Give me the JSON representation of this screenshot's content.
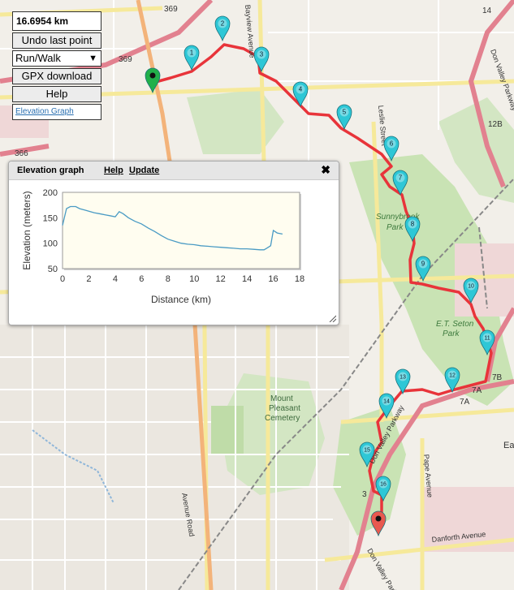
{
  "panel": {
    "distance": "16.6954 km",
    "undo_label": "Undo last point",
    "mode_selected": "Run/Walk",
    "gpx_label": "GPX download",
    "help_label": "Help",
    "elevation_link": "Elevation Graph"
  },
  "elevation_graph": {
    "title": "Elevation graph",
    "help_label": "Help",
    "update_label": "Update"
  },
  "map_labels": {
    "bayview": "Bayview Avenue",
    "leslie": "Leslie Street",
    "sunnybrook": "Sunnybrook",
    "park": "Park",
    "etseton": "E.T. Seton",
    "etseton_park": "Park",
    "mount": "Mount",
    "pleasant": "Pleasant",
    "cemetery": "Cemetery",
    "pape": "Pape Avenue",
    "danforth": "Danforth Avenue",
    "avenue_road": "Avenue Road",
    "dvp": "Don Valley Parkway",
    "dvp2": "Don Valley Parkway",
    "dvp3": "Don Valley Parkway",
    "hwy369a": "369",
    "hwy369b": "369",
    "hwy366": "366",
    "hwy14": "14",
    "hwy12b": "12B",
    "hwy7b": "7B",
    "hwy7a": "7A",
    "hwy7a2": "7A",
    "hwy3": "3",
    "ea": "Ea"
  },
  "markers": [
    "1",
    "2",
    "3",
    "4",
    "5",
    "6",
    "7",
    "8",
    "9",
    "10",
    "11",
    "12",
    "13",
    "14",
    "15",
    "16"
  ],
  "colors": {
    "route": "#e8343a",
    "marker": "#2ec7d6",
    "start": "#22b04a",
    "end": "#e8594f"
  },
  "chart_data": {
    "type": "line",
    "title": "",
    "xlabel": "Distance (km)",
    "ylabel": "Elevation (meters)",
    "xlim": [
      0,
      18
    ],
    "ylim": [
      50,
      200
    ],
    "xticks": [
      0,
      2,
      4,
      6,
      8,
      10,
      12,
      14,
      16,
      18
    ],
    "yticks": [
      50,
      100,
      150,
      200
    ],
    "grid": false,
    "x": [
      0,
      0.3,
      0.6,
      1.0,
      1.3,
      1.7,
      2.0,
      2.4,
      2.8,
      3.2,
      3.6,
      4.0,
      4.3,
      4.6,
      5.0,
      5.5,
      6.0,
      6.5,
      7.0,
      7.5,
      8.0,
      8.5,
      9.0,
      9.5,
      10.0,
      10.5,
      11.0,
      11.5,
      12.0,
      12.5,
      13.0,
      13.5,
      14.0,
      14.5,
      15.0,
      15.3,
      15.5,
      15.8,
      16.0,
      16.3,
      16.7
    ],
    "y": [
      135,
      168,
      172,
      172,
      168,
      165,
      163,
      160,
      158,
      156,
      154,
      152,
      162,
      158,
      150,
      143,
      138,
      130,
      123,
      115,
      108,
      104,
      100,
      98,
      97,
      95,
      94,
      93,
      92,
      91,
      90,
      89,
      89,
      88,
      87,
      87,
      90,
      95,
      125,
      120,
      118
    ]
  }
}
